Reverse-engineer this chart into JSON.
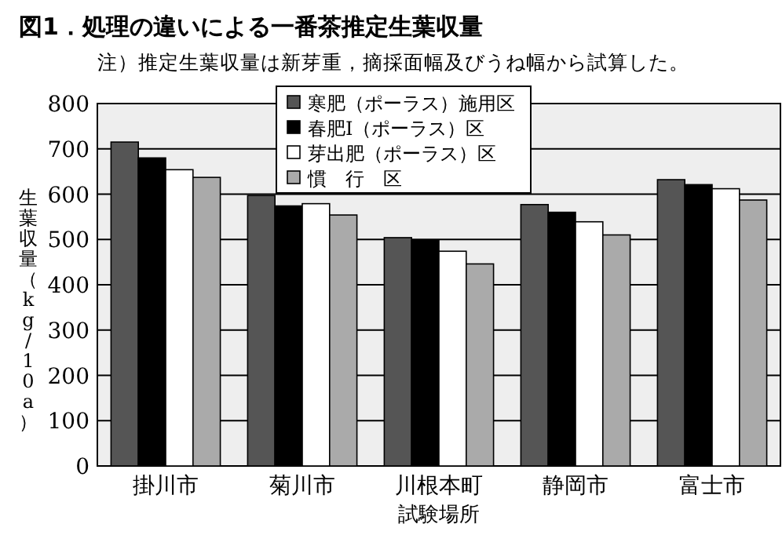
{
  "chart_data": {
    "type": "bar",
    "title": "図1．処理の違いによる一番茶推定生葉収量",
    "annotations": [
      "注）推定生葉収量は新芽重，摘採面幅及びうね幅から試算した。"
    ],
    "xlabel": "試験場所",
    "ylabel": "生葉収量（kg/10a）",
    "categories": [
      "掛川市",
      "菊川市",
      "川根本町",
      "静岡市",
      "富士市"
    ],
    "series": [
      {
        "name": "寒肥（ポーラス）施用区",
        "color": "#555555",
        "values": [
          715,
          597,
          504,
          577,
          632
        ]
      },
      {
        "name": "春肥Ⅰ（ポーラス）区",
        "color": "#000000",
        "values": [
          680,
          574,
          498,
          560,
          621
        ]
      },
      {
        "name": "芽出肥（ポーラス）区",
        "color": "#ffffff",
        "values": [
          654,
          579,
          474,
          539,
          612
        ]
      },
      {
        "name": "慣　行　区",
        "color": "#aaaaaa",
        "values": [
          637,
          554,
          446,
          510,
          587
        ]
      }
    ],
    "ylim": [
      0,
      800
    ],
    "yticks": [
      0,
      100,
      200,
      300,
      400,
      500,
      600,
      700,
      800
    ],
    "grid": "y",
    "legend": "top"
  }
}
